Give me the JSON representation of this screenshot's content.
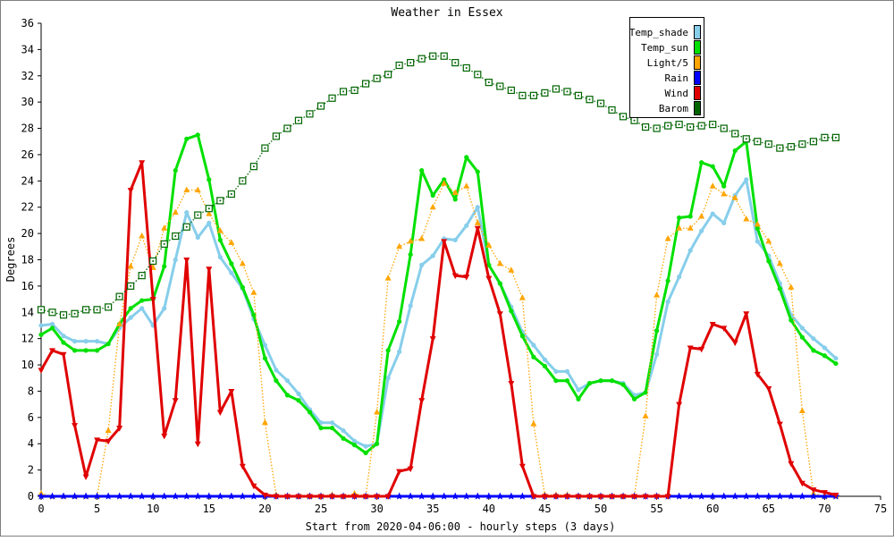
{
  "chart_data": {
    "type": "line",
    "title": "Weather in Essex",
    "xlabel": "Start from 2020-04-06:00 - hourly steps (3 days)",
    "ylabel": "Degrees",
    "xlim": [
      0,
      75
    ],
    "ylim": [
      0,
      36
    ],
    "x_ticks": [
      0,
      5,
      10,
      15,
      20,
      25,
      30,
      35,
      40,
      45,
      50,
      55,
      60,
      65,
      70,
      75
    ],
    "y_ticks": [
      0,
      2,
      4,
      6,
      8,
      10,
      12,
      14,
      16,
      18,
      20,
      22,
      24,
      26,
      28,
      30,
      32,
      34,
      36
    ],
    "grid": false,
    "legend_position": "top-right",
    "background": "#ffffff",
    "border_color": "#808080",
    "series": [
      {
        "name": "Temp_shade",
        "color": "#87ceeb",
        "style": "solid-thick",
        "marker": "dot",
        "values": [
          13.0,
          13.1,
          12.2,
          11.8,
          11.8,
          11.8,
          11.6,
          12.8,
          13.6,
          14.3,
          13.0,
          14.3,
          18.0,
          21.6,
          19.7,
          20.8,
          18.2,
          17.0,
          15.8,
          13.5,
          11.5,
          9.6,
          8.8,
          7.8,
          6.6,
          5.6,
          5.6,
          5.0,
          4.2,
          3.8,
          4.0,
          9.0,
          11.0,
          14.5,
          17.6,
          18.3,
          19.6,
          19.5,
          20.6,
          22.0,
          17.6,
          16.2,
          14.4,
          12.5,
          11.5,
          10.4,
          9.5,
          9.5,
          8.1,
          8.6,
          8.8,
          8.8,
          8.6,
          7.7,
          7.9,
          10.8,
          14.8,
          16.7,
          18.7,
          20.2,
          21.5,
          20.8,
          22.9,
          24.1,
          19.4,
          18.3,
          16.2,
          13.8,
          12.8,
          12.0,
          11.3,
          10.5
        ]
      },
      {
        "name": "Temp_sun",
        "color": "#00e000",
        "style": "solid-thick",
        "marker": "dot",
        "values": [
          12.3,
          12.8,
          11.7,
          11.1,
          11.1,
          11.1,
          11.6,
          13.1,
          14.3,
          14.9,
          15.0,
          17.5,
          24.8,
          27.2,
          27.5,
          24.1,
          19.5,
          17.7,
          15.9,
          13.8,
          10.5,
          8.8,
          7.7,
          7.3,
          6.4,
          5.2,
          5.2,
          4.4,
          3.9,
          3.3,
          4.0,
          11.1,
          13.3,
          18.4,
          24.8,
          22.9,
          24.1,
          22.6,
          25.8,
          24.7,
          17.6,
          16.2,
          14.1,
          12.2,
          10.6,
          9.9,
          8.8,
          8.8,
          7.4,
          8.6,
          8.8,
          8.8,
          8.5,
          7.4,
          7.9,
          12.6,
          16.4,
          21.2,
          21.3,
          25.4,
          25.1,
          23.6,
          26.3,
          27.0,
          20.4,
          17.9,
          15.8,
          13.4,
          12.1,
          11.1,
          10.7,
          10.1
        ]
      },
      {
        "name": "Light/5",
        "color": "#ffa500",
        "style": "dotted",
        "marker": "triangle-up",
        "values": [
          0.2,
          0,
          0,
          0,
          0,
          0,
          5.0,
          13.1,
          17.5,
          19.8,
          17.4,
          20.4,
          21.6,
          23.3,
          23.3,
          21.5,
          20.2,
          19.3,
          17.7,
          15.5,
          5.6,
          0.1,
          0,
          0,
          0,
          0,
          0.1,
          0,
          0.2,
          0,
          6.4,
          16.6,
          19.0,
          19.4,
          19.6,
          22.0,
          23.8,
          23.1,
          23.6,
          20.8,
          19.1,
          17.7,
          17.2,
          15.1,
          5.5,
          0.1,
          0.1,
          0.1,
          0,
          0,
          0,
          0,
          0,
          0,
          6.1,
          15.3,
          19.6,
          20.4,
          20.4,
          21.3,
          23.6,
          23.0,
          22.7,
          21.1,
          20.7,
          19.4,
          17.7,
          15.9,
          6.5,
          0.2,
          0,
          0
        ]
      },
      {
        "name": "Rain",
        "color": "#0000ff",
        "style": "solid-thick",
        "marker": "star",
        "values": [
          0,
          0,
          0,
          0,
          0,
          0,
          0,
          0,
          0,
          0,
          0,
          0,
          0,
          0,
          0,
          0,
          0,
          0,
          0,
          0,
          0,
          0,
          0,
          0,
          0,
          0,
          0,
          0,
          0,
          0,
          0,
          0,
          0,
          0,
          0,
          0,
          0,
          0,
          0,
          0,
          0,
          0,
          0,
          0,
          0,
          0,
          0,
          0,
          0,
          0,
          0,
          0,
          0,
          0,
          0,
          0,
          0,
          0,
          0,
          0,
          0,
          0,
          0,
          0,
          0,
          0,
          0,
          0,
          0,
          0,
          0,
          0
        ]
      },
      {
        "name": "Wind",
        "color": "#e00000",
        "style": "solid-thick",
        "marker": "triangle-down",
        "values": [
          9.6,
          11.1,
          10.8,
          5.4,
          1.5,
          4.3,
          4.2,
          5.2,
          23.3,
          25.4,
          15.0,
          4.6,
          7.3,
          18.0,
          4.0,
          17.3,
          6.4,
          8.0,
          2.3,
          0.8,
          0.1,
          0,
          0,
          0,
          0,
          0,
          0,
          0,
          0,
          0,
          0,
          0,
          1.9,
          2.1,
          7.3,
          12.0,
          19.4,
          16.8,
          16.7,
          20.4,
          16.6,
          13.9,
          8.6,
          2.3,
          0,
          0,
          0,
          0,
          0,
          0,
          0,
          0,
          0,
          0,
          0,
          0,
          0,
          7.0,
          11.3,
          11.2,
          13.1,
          12.8,
          11.7,
          13.9,
          9.3,
          8.2,
          5.5,
          2.5,
          1.0,
          0.5,
          0.3,
          0.1
        ]
      },
      {
        "name": "Barom",
        "color": "#006400",
        "style": "dotted",
        "marker": "square-dot",
        "values": [
          14.2,
          14.0,
          13.8,
          13.9,
          14.2,
          14.2,
          14.4,
          15.2,
          16.0,
          16.8,
          17.9,
          19.2,
          19.8,
          20.5,
          21.4,
          21.9,
          22.5,
          23.0,
          24.0,
          25.1,
          26.5,
          27.4,
          28.0,
          28.6,
          29.1,
          29.7,
          30.3,
          30.8,
          30.9,
          31.4,
          31.8,
          32.1,
          32.8,
          33.0,
          33.3,
          33.5,
          33.5,
          33.0,
          32.6,
          32.1,
          31.5,
          31.2,
          30.9,
          30.5,
          30.5,
          30.7,
          31.0,
          30.8,
          30.5,
          30.2,
          29.9,
          29.4,
          28.9,
          28.6,
          28.1,
          28.0,
          28.2,
          28.3,
          28.1,
          28.2,
          28.3,
          28.0,
          27.6,
          27.2,
          27.0,
          26.8,
          26.5,
          26.6,
          26.8,
          27.0,
          27.3,
          27.3
        ]
      }
    ]
  }
}
